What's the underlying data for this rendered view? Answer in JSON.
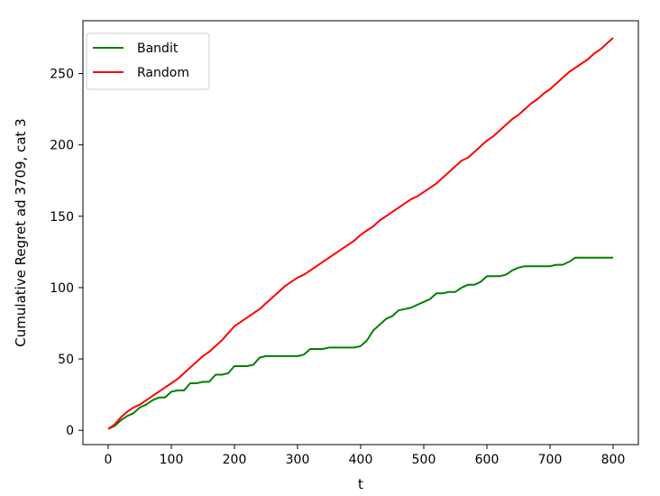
{
  "chart_data": {
    "type": "line",
    "title": "",
    "xlabel": "t",
    "ylabel": "Cumulative Regret ad 3709, cat 3",
    "xlim": [
      -40,
      840
    ],
    "ylim": [
      -10,
      287
    ],
    "xticks": [
      0,
      100,
      200,
      300,
      400,
      500,
      600,
      700,
      800
    ],
    "yticks": [
      0,
      50,
      100,
      150,
      200,
      250
    ],
    "grid": false,
    "legend_position": "top-left",
    "series": [
      {
        "name": "Bandit",
        "color": "#008000",
        "points": [
          [
            0,
            1
          ],
          [
            10,
            3
          ],
          [
            20,
            7
          ],
          [
            30,
            10
          ],
          [
            40,
            12
          ],
          [
            50,
            16
          ],
          [
            60,
            18
          ],
          [
            70,
            21
          ],
          [
            80,
            23
          ],
          [
            90,
            23
          ],
          [
            100,
            27
          ],
          [
            110,
            28
          ],
          [
            120,
            28
          ],
          [
            130,
            33
          ],
          [
            140,
            33
          ],
          [
            150,
            34
          ],
          [
            160,
            34
          ],
          [
            170,
            39
          ],
          [
            180,
            39
          ],
          [
            190,
            40
          ],
          [
            200,
            45
          ],
          [
            210,
            45
          ],
          [
            220,
            45
          ],
          [
            230,
            46
          ],
          [
            240,
            51
          ],
          [
            250,
            52
          ],
          [
            260,
            52
          ],
          [
            270,
            52
          ],
          [
            280,
            52
          ],
          [
            290,
            52
          ],
          [
            300,
            52
          ],
          [
            310,
            53
          ],
          [
            320,
            57
          ],
          [
            330,
            57
          ],
          [
            340,
            57
          ],
          [
            350,
            58
          ],
          [
            360,
            58
          ],
          [
            370,
            58
          ],
          [
            380,
            58
          ],
          [
            390,
            58
          ],
          [
            400,
            59
          ],
          [
            410,
            63
          ],
          [
            420,
            70
          ],
          [
            430,
            74
          ],
          [
            440,
            78
          ],
          [
            450,
            80
          ],
          [
            460,
            84
          ],
          [
            470,
            85
          ],
          [
            480,
            86
          ],
          [
            490,
            88
          ],
          [
            500,
            90
          ],
          [
            510,
            92
          ],
          [
            520,
            96
          ],
          [
            530,
            96
          ],
          [
            540,
            97
          ],
          [
            550,
            97
          ],
          [
            560,
            100
          ],
          [
            570,
            102
          ],
          [
            580,
            102
          ],
          [
            590,
            104
          ],
          [
            600,
            108
          ],
          [
            610,
            108
          ],
          [
            620,
            108
          ],
          [
            630,
            109
          ],
          [
            640,
            112
          ],
          [
            650,
            114
          ],
          [
            660,
            115
          ],
          [
            670,
            115
          ],
          [
            680,
            115
          ],
          [
            690,
            115
          ],
          [
            700,
            115
          ],
          [
            710,
            116
          ],
          [
            720,
            116
          ],
          [
            730,
            118
          ],
          [
            740,
            121
          ],
          [
            750,
            121
          ],
          [
            760,
            121
          ],
          [
            770,
            121
          ],
          [
            780,
            121
          ],
          [
            790,
            121
          ],
          [
            800,
            121
          ]
        ]
      },
      {
        "name": "Random",
        "color": "#ff0000",
        "points": [
          [
            0,
            1
          ],
          [
            10,
            4
          ],
          [
            20,
            9
          ],
          [
            30,
            13
          ],
          [
            40,
            16
          ],
          [
            50,
            18
          ],
          [
            60,
            21
          ],
          [
            70,
            24
          ],
          [
            80,
            27
          ],
          [
            90,
            30
          ],
          [
            100,
            33
          ],
          [
            110,
            36
          ],
          [
            120,
            40
          ],
          [
            130,
            44
          ],
          [
            140,
            48
          ],
          [
            150,
            52
          ],
          [
            160,
            55
          ],
          [
            170,
            59
          ],
          [
            180,
            63
          ],
          [
            190,
            68
          ],
          [
            200,
            73
          ],
          [
            210,
            76
          ],
          [
            220,
            79
          ],
          [
            230,
            82
          ],
          [
            240,
            85
          ],
          [
            250,
            89
          ],
          [
            260,
            93
          ],
          [
            270,
            97
          ],
          [
            280,
            101
          ],
          [
            290,
            104
          ],
          [
            300,
            107
          ],
          [
            310,
            109
          ],
          [
            320,
            112
          ],
          [
            330,
            115
          ],
          [
            340,
            118
          ],
          [
            350,
            121
          ],
          [
            360,
            124
          ],
          [
            370,
            127
          ],
          [
            380,
            130
          ],
          [
            390,
            133
          ],
          [
            400,
            137
          ],
          [
            410,
            140
          ],
          [
            420,
            143
          ],
          [
            430,
            147
          ],
          [
            440,
            150
          ],
          [
            450,
            153
          ],
          [
            460,
            156
          ],
          [
            470,
            159
          ],
          [
            480,
            162
          ],
          [
            490,
            164
          ],
          [
            500,
            167
          ],
          [
            510,
            170
          ],
          [
            520,
            173
          ],
          [
            530,
            177
          ],
          [
            540,
            181
          ],
          [
            550,
            185
          ],
          [
            560,
            189
          ],
          [
            570,
            191
          ],
          [
            580,
            195
          ],
          [
            590,
            199
          ],
          [
            600,
            203
          ],
          [
            610,
            206
          ],
          [
            620,
            210
          ],
          [
            630,
            214
          ],
          [
            640,
            218
          ],
          [
            650,
            221
          ],
          [
            660,
            225
          ],
          [
            670,
            229
          ],
          [
            680,
            232
          ],
          [
            690,
            236
          ],
          [
            700,
            239
          ],
          [
            710,
            243
          ],
          [
            720,
            247
          ],
          [
            730,
            251
          ],
          [
            740,
            254
          ],
          [
            750,
            257
          ],
          [
            760,
            260
          ],
          [
            770,
            264
          ],
          [
            780,
            267
          ],
          [
            790,
            271
          ],
          [
            800,
            275
          ]
        ]
      }
    ]
  }
}
